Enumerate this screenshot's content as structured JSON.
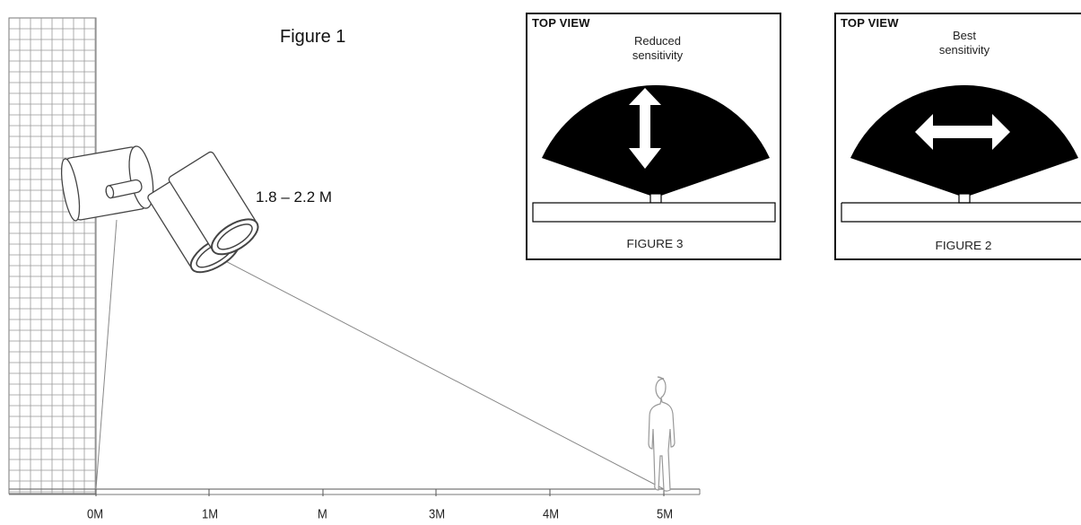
{
  "figure1": {
    "title": "Figure 1",
    "height_label": "1.8 – 2.2 M",
    "axis_ticks": [
      "0M",
      "1M",
      "M",
      "3M",
      "4M",
      "5M"
    ]
  },
  "figure3": {
    "view_label": "TOP VIEW",
    "sensitivity_label_line1": "Reduced",
    "sensitivity_label_line2": "sensitivity",
    "caption": "FIGURE 3"
  },
  "figure2": {
    "view_label": "TOP VIEW",
    "sensitivity_label_line1": "Best",
    "sensitivity_label_line2": "sensitivity",
    "caption": "FIGURE 2"
  }
}
